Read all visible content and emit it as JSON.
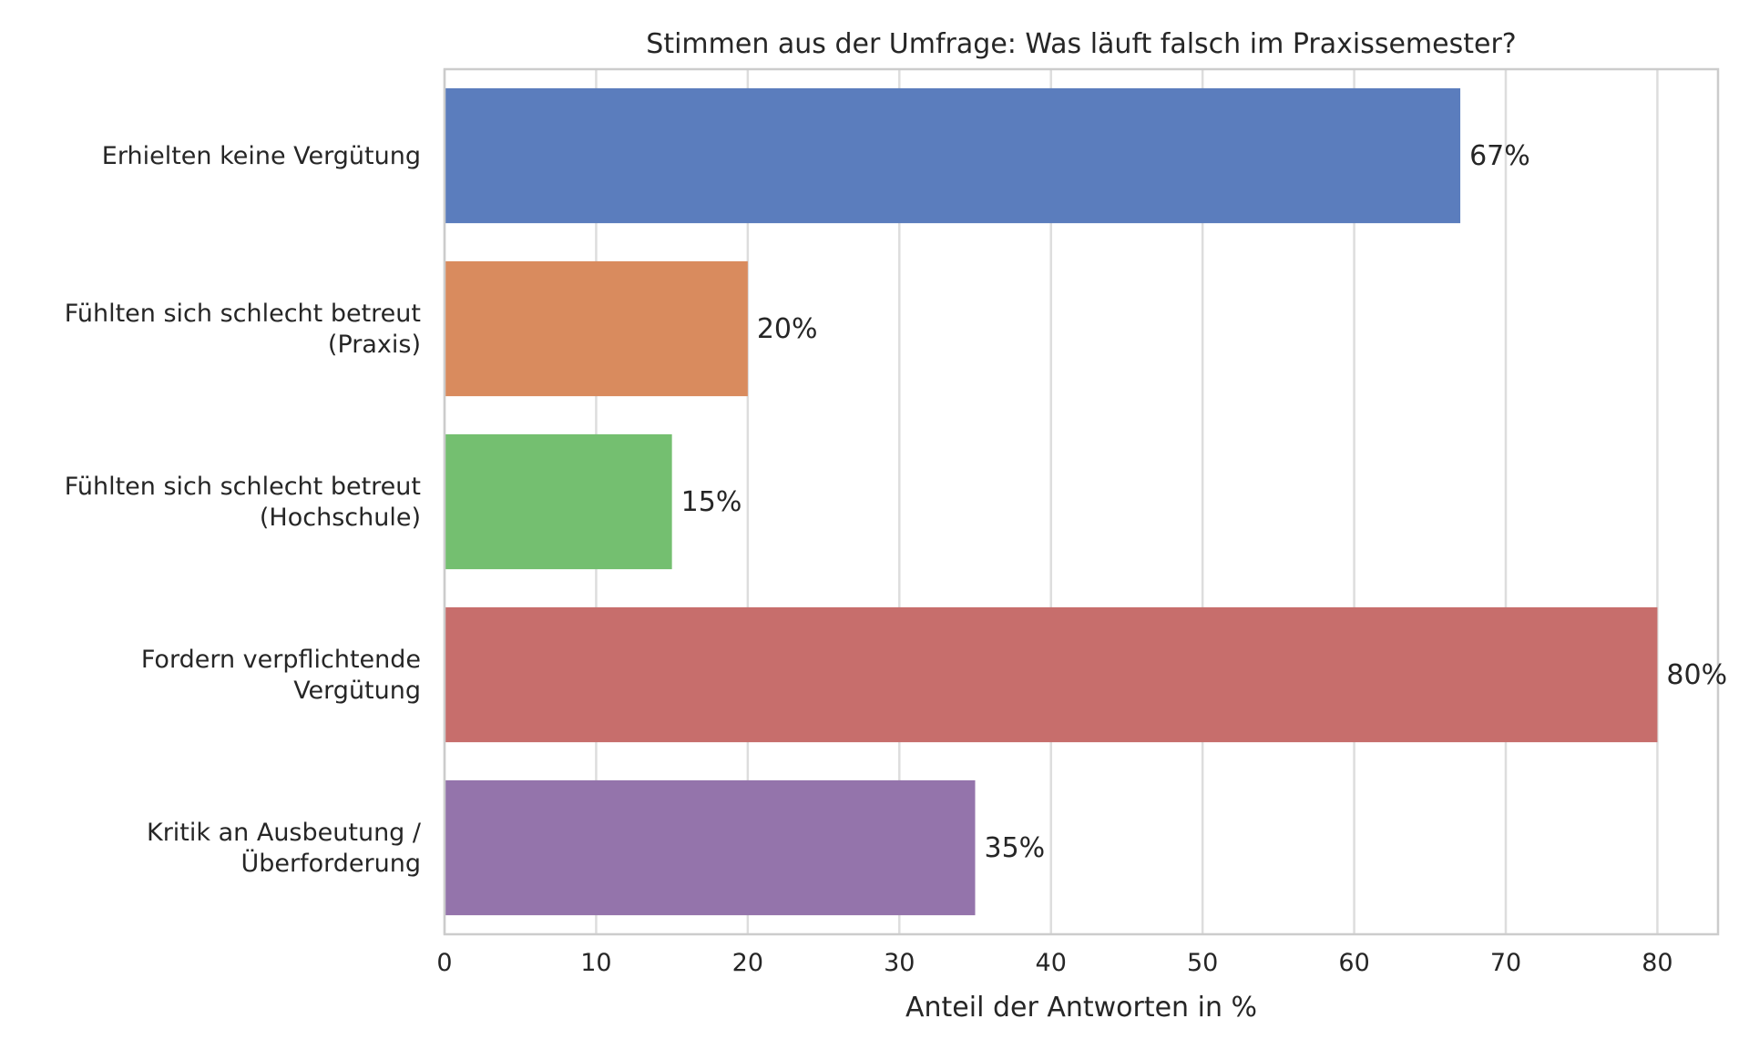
{
  "chart_data": {
    "type": "bar",
    "orientation": "horizontal",
    "title": "Stimmen aus der Umfrage: Was läuft falsch im Praxissemester?",
    "xlabel": "Anteil der Antworten in %",
    "ylabel": "",
    "xlim": [
      0,
      84
    ],
    "xticks": [
      0,
      10,
      20,
      30,
      40,
      50,
      60,
      70,
      80
    ],
    "grid": "vertical",
    "value_suffix": "%",
    "categories": [
      [
        "Erhielten keine Vergütung"
      ],
      [
        "Fühlten sich schlecht betreut",
        "(Praxis)"
      ],
      [
        "Fühlten sich schlecht betreut",
        "(Hochschule)"
      ],
      [
        "Fordern verpflichtende",
        "Vergütung"
      ],
      [
        "Kritik an Ausbeutung /",
        "Überforderung"
      ]
    ],
    "values": [
      67,
      20,
      15,
      80,
      35
    ],
    "colors": [
      "#5b7dbd",
      "#d98b5e",
      "#74bf70",
      "#c76e6c",
      "#9474ab"
    ]
  }
}
